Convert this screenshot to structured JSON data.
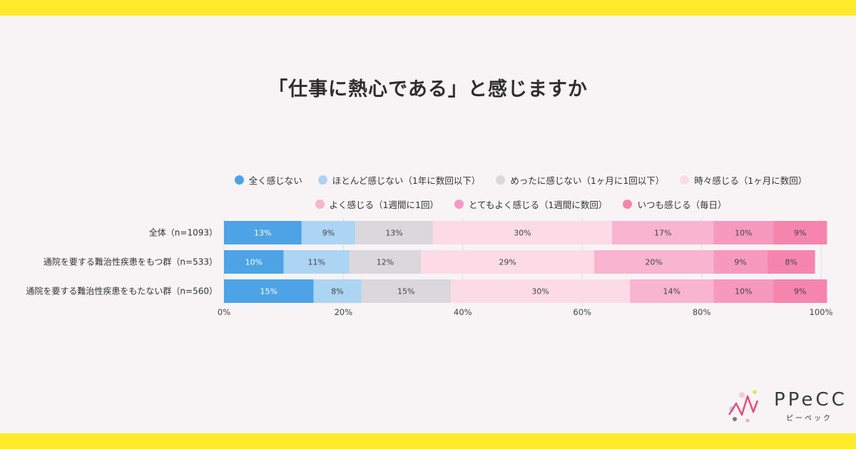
{
  "header": {
    "title": "「仕事に熱心である」と感じますか"
  },
  "chart_data": {
    "type": "bar",
    "orientation": "horizontal",
    "stacked": true,
    "title": "「仕事に熱心である」と感じますか",
    "categories": [
      "全体（n=1093）",
      "通院を要する難治性疾患をもつ群（n=533）",
      "通院を要する難治性疾患をもたない群（n=560）"
    ],
    "series": [
      {
        "name": "全く感じない",
        "color": "#4da3e6",
        "values": [
          13,
          10,
          15
        ]
      },
      {
        "name": "ほとんど感じない（1年に数回以下）",
        "color": "#acd4f3",
        "values": [
          9,
          11,
          8
        ]
      },
      {
        "name": "めったに感じない（1ヶ月に1回以下）",
        "color": "#dbd7da",
        "values": [
          13,
          12,
          15
        ]
      },
      {
        "name": "時々感じる（1ヶ月に数回）",
        "color": "#fcdbe6",
        "values": [
          30,
          29,
          30
        ]
      },
      {
        "name": "よく感じる（1週間に1回）",
        "color": "#f9b4cf",
        "values": [
          17,
          20,
          14
        ]
      },
      {
        "name": "とてもよく感じる（1週間に数回）",
        "color": "#f799bf",
        "values": [
          10,
          9,
          10
        ]
      },
      {
        "name": "いつも感じる（毎日）",
        "color": "#f685ae",
        "values": [
          9,
          8,
          9
        ]
      }
    ],
    "value_labels": [
      [
        "13%",
        "9%",
        "13%",
        "30%",
        "17%",
        "10%",
        "9%"
      ],
      [
        "10%",
        "11%",
        "12%",
        "29%",
        "20%",
        "9%",
        "8%"
      ],
      [
        "15%",
        "8%",
        "15%",
        "30%",
        "14%",
        "10%",
        "9%"
      ]
    ],
    "x_ticks": [
      "0%",
      "20%",
      "40%",
      "60%",
      "80%",
      "100%"
    ],
    "xlim": [
      0,
      100
    ],
    "legend_position": "top",
    "grid": true
  },
  "logo": {
    "text": "PPeCC",
    "subtext": "ピーペック"
  }
}
